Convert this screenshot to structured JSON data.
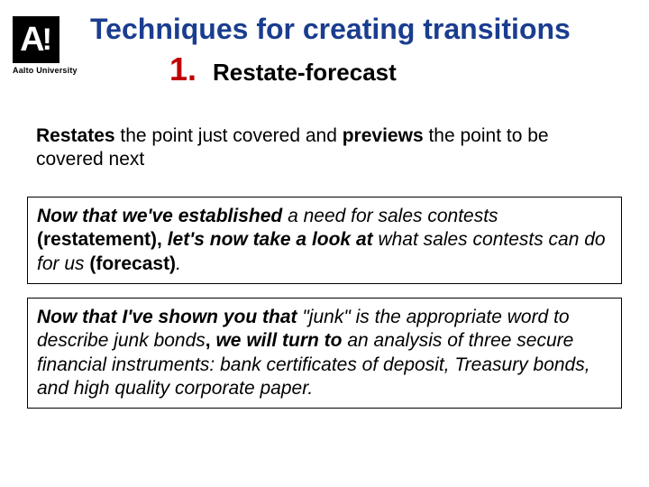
{
  "logo": {
    "letter": "A",
    "exclaim": "!",
    "university": "Aalto University"
  },
  "title": "Techniques for creating transitions",
  "subtitle": {
    "number": "1.",
    "label": "Restate-forecast"
  },
  "description": {
    "part1": "Restates",
    "part2": " the point just covered and ",
    "part3": "previews",
    "part4": " the point to be covered next"
  },
  "example1": {
    "s1": "Now that we've established",
    "s2": " a need for sales contests ",
    "s3": "(restatement)",
    "s4": ",",
    "s5": " let's now take a look at",
    "s6": " what sales contests can do for us ",
    "s7": "(forecast)",
    "s8": "."
  },
  "example2": {
    "s1": "Now that I've shown you that",
    "s2": " \"junk\" is the appropriate word to describe junk bonds",
    "s3": ",",
    "s4": " we will turn to",
    "s5": " an analysis of three secure financial instruments: bank certificates of deposit, Treasury bonds, and high quality corporate paper."
  },
  "colors": {
    "title": "#1a3d8f",
    "number": "#c00000",
    "text": "#000000",
    "border": "#000000",
    "background": "#ffffff"
  }
}
